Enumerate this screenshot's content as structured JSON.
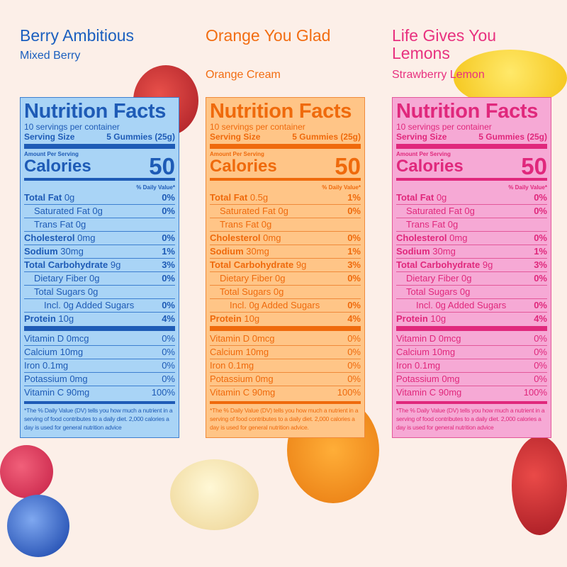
{
  "panels": [
    {
      "name": "Berry Ambitious",
      "flavor": "Mixed Berry",
      "heading": "Nutrition Facts",
      "servings": "10 servings per container",
      "serving_label": "Serving Size",
      "serving_value": "5 Gummies (25g)",
      "amount_label": "Amount Per Serving",
      "calories_label": "Calories",
      "calories": 50,
      "dv_header": "% Daily Value*",
      "rows": [
        {
          "label": "Total Fat",
          "amount": "0g",
          "dv": "0%",
          "bold": true,
          "indent": 0
        },
        {
          "label": "Saturated Fat",
          "amount": "0g",
          "dv": "0%",
          "bold": false,
          "indent": 1
        },
        {
          "label": "Trans Fat",
          "amount": "0g",
          "dv": null,
          "bold": false,
          "indent": 1
        },
        {
          "label": "Cholesterol",
          "amount": "0mg",
          "dv": "0%",
          "bold": true,
          "indent": 0
        },
        {
          "label": "Sodium",
          "amount": "30mg",
          "dv": "1%",
          "bold": true,
          "indent": 0
        },
        {
          "label": "Total Carbohydrate",
          "amount": "9g",
          "dv": "3%",
          "bold": true,
          "indent": 0
        },
        {
          "label": "Dietary Fiber",
          "amount": "0g",
          "dv": "0%",
          "bold": false,
          "indent": 1
        },
        {
          "label": "Total Sugars",
          "amount": "0g",
          "dv": null,
          "bold": false,
          "indent": 1
        },
        {
          "label": "Incl. 0g Added Sugars",
          "amount": null,
          "dv": "0%",
          "bold": false,
          "indent": 2
        },
        {
          "label": "Protein",
          "amount": "10g",
          "dv": "4%",
          "bold": true,
          "indent": 0
        }
      ],
      "vitamins": [
        {
          "label": "Vitamin D",
          "amount": "0mcg",
          "dv": "0%"
        },
        {
          "label": "Calcium",
          "amount": "10mg",
          "dv": "0%"
        },
        {
          "label": "Iron",
          "amount": "0.1mg",
          "dv": "0%"
        },
        {
          "label": "Potassium",
          "amount": "0mg",
          "dv": "0%"
        },
        {
          "label": "Vitamin C",
          "amount": "90mg",
          "dv": "100%"
        }
      ],
      "footnote": "*The % Daily Value (DV) tells you how much a nutrient in a serving of food contributes to a daily diet. 2,000 calories a day is used for general nutrition advice"
    },
    {
      "name": "Orange You Glad",
      "flavor": "Orange Cream",
      "heading": "Nutrition Facts",
      "servings": "10 servings per container",
      "serving_label": "Serving Size",
      "serving_value": "5 Gummies (25g)",
      "amount_label": "Amount Per Serving",
      "calories_label": "Calories",
      "calories": 50,
      "dv_header": "% Daily Value*",
      "rows": [
        {
          "label": "Total Fat",
          "amount": "0.5g",
          "dv": "1%",
          "bold": true,
          "indent": 0
        },
        {
          "label": "Saturated Fat",
          "amount": "0g",
          "dv": "0%",
          "bold": false,
          "indent": 1
        },
        {
          "label": "Trans Fat",
          "amount": "0g",
          "dv": null,
          "bold": false,
          "indent": 1
        },
        {
          "label": "Cholesterol",
          "amount": "0mg",
          "dv": "0%",
          "bold": true,
          "indent": 0
        },
        {
          "label": "Sodium",
          "amount": "30mg",
          "dv": "1%",
          "bold": true,
          "indent": 0
        },
        {
          "label": "Total Carbohydrate",
          "amount": "9g",
          "dv": "3%",
          "bold": true,
          "indent": 0
        },
        {
          "label": "Dietary Fiber",
          "amount": "0g",
          "dv": "0%",
          "bold": false,
          "indent": 1
        },
        {
          "label": "Total Sugars",
          "amount": "0g",
          "dv": null,
          "bold": false,
          "indent": 1
        },
        {
          "label": "Incl. 0g Added Sugars",
          "amount": null,
          "dv": "0%",
          "bold": false,
          "indent": 2
        },
        {
          "label": "Protein",
          "amount": "10g",
          "dv": "4%",
          "bold": true,
          "indent": 0
        }
      ],
      "vitamins": [
        {
          "label": "Vitamin D",
          "amount": "0mcg",
          "dv": "0%"
        },
        {
          "label": "Calcium",
          "amount": "10mg",
          "dv": "0%"
        },
        {
          "label": "Iron",
          "amount": "0.1mg",
          "dv": "0%"
        },
        {
          "label": "Potassium",
          "amount": "0mg",
          "dv": "0%"
        },
        {
          "label": "Vitamin C",
          "amount": "90mg",
          "dv": "100%"
        }
      ],
      "footnote": "*The % Daily Value (DV) tells you how much a nutrient in a serving of food contributes to a daily diet. 2,000 calories a day is used for general nutrition advice."
    },
    {
      "name": "Life Gives You Lemons",
      "flavor": "Strawberry Lemon",
      "heading": "Nutrition Facts",
      "servings": "10 servings per container",
      "serving_label": "Serving Size",
      "serving_value": "5 Gummies (25g)",
      "amount_label": "Amount Per Serving",
      "calories_label": "Calories",
      "calories": 50,
      "dv_header": "% Daily Value*",
      "rows": [
        {
          "label": "Total Fat",
          "amount": "0g",
          "dv": "0%",
          "bold": true,
          "indent": 0
        },
        {
          "label": "Saturated Fat",
          "amount": "0g",
          "dv": "0%",
          "bold": false,
          "indent": 1
        },
        {
          "label": "Trans Fat",
          "amount": "0g",
          "dv": null,
          "bold": false,
          "indent": 1
        },
        {
          "label": "Cholesterol",
          "amount": "0mg",
          "dv": "0%",
          "bold": true,
          "indent": 0
        },
        {
          "label": "Sodium",
          "amount": "30mg",
          "dv": "1%",
          "bold": true,
          "indent": 0
        },
        {
          "label": "Total Carbohydrate",
          "amount": "9g",
          "dv": "3%",
          "bold": true,
          "indent": 0
        },
        {
          "label": "Dietary Fiber",
          "amount": "0g",
          "dv": "0%",
          "bold": false,
          "indent": 1
        },
        {
          "label": "Total Sugars",
          "amount": "0g",
          "dv": null,
          "bold": false,
          "indent": 1
        },
        {
          "label": "Incl. 0g Added Sugars",
          "amount": null,
          "dv": "0%",
          "bold": false,
          "indent": 2
        },
        {
          "label": "Protein",
          "amount": "10g",
          "dv": "4%",
          "bold": true,
          "indent": 0
        }
      ],
      "vitamins": [
        {
          "label": "Vitamin D",
          "amount": "0mcg",
          "dv": "0%"
        },
        {
          "label": "Calcium",
          "amount": "10mg",
          "dv": "0%"
        },
        {
          "label": "Iron",
          "amount": "0.1mg",
          "dv": "0%"
        },
        {
          "label": "Potassium",
          "amount": "0mg",
          "dv": "0%"
        },
        {
          "label": "Vitamin C",
          "amount": "90mg",
          "dv": "100%"
        }
      ],
      "footnote": "*The % Daily Value (DV) tells you how much a nutrient in a serving of food contributes to a daily diet. 2,000 calories a day is used for general nutrition advice"
    }
  ]
}
